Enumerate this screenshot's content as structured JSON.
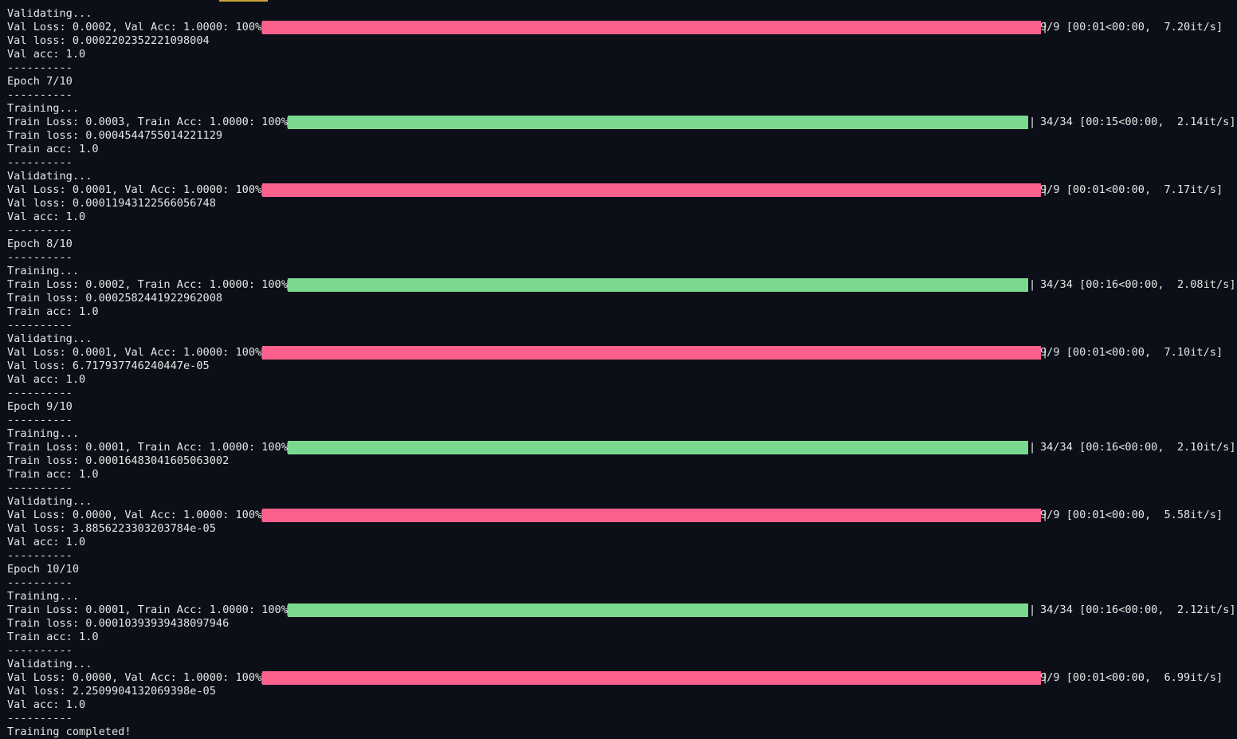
{
  "colors": {
    "background": "#0c0f17",
    "text": "#e6e6e6",
    "train_bar": "#7bd88f",
    "val_bar": "#fc618d"
  },
  "lines": [
    {
      "text": "Validating..."
    },
    {
      "bar": "val",
      "prefix": "Val Loss: 0.0002, Val Acc: 1.0000: 100%",
      "progress": 1.0,
      "suffix": "9/9 [00:01<00:00,  7.20it/s]"
    },
    {
      "text": "Val loss: 0.0002202352221098004"
    },
    {
      "text": "Val acc: 1.0"
    },
    {
      "text": "----------"
    },
    {
      "text": "Epoch 7/10"
    },
    {
      "text": "----------"
    },
    {
      "text": "Training..."
    },
    {
      "bar": "train",
      "prefix": "Train Loss: 0.0003, Train Acc: 1.0000: 100%",
      "progress": 1.0,
      "suffix": "34/34 [00:15<00:00,  2.14it/s]"
    },
    {
      "text": "Train loss: 0.0004544755014221129"
    },
    {
      "text": "Train acc: 1.0"
    },
    {
      "text": "----------"
    },
    {
      "text": "Validating..."
    },
    {
      "bar": "val",
      "prefix": "Val Loss: 0.0001, Val Acc: 1.0000: 100%",
      "progress": 1.0,
      "suffix": "9/9 [00:01<00:00,  7.17it/s]"
    },
    {
      "text": "Val loss: 0.00011943122566056748"
    },
    {
      "text": "Val acc: 1.0"
    },
    {
      "text": "----------"
    },
    {
      "text": "Epoch 8/10"
    },
    {
      "text": "----------"
    },
    {
      "text": "Training..."
    },
    {
      "bar": "train",
      "prefix": "Train Loss: 0.0002, Train Acc: 1.0000: 100%",
      "progress": 1.0,
      "suffix": "34/34 [00:16<00:00,  2.08it/s]"
    },
    {
      "text": "Train loss: 0.0002582441922962008"
    },
    {
      "text": "Train acc: 1.0"
    },
    {
      "text": "----------"
    },
    {
      "text": "Validating..."
    },
    {
      "bar": "val",
      "prefix": "Val Loss: 0.0001, Val Acc: 1.0000: 100%",
      "progress": 1.0,
      "suffix": "9/9 [00:01<00:00,  7.10it/s]"
    },
    {
      "text": "Val loss: 6.717937746240447e-05"
    },
    {
      "text": "Val acc: 1.0"
    },
    {
      "text": "----------"
    },
    {
      "text": "Epoch 9/10"
    },
    {
      "text": "----------"
    },
    {
      "text": "Training..."
    },
    {
      "bar": "train",
      "prefix": "Train Loss: 0.0001, Train Acc: 1.0000: 100%",
      "progress": 1.0,
      "suffix": "34/34 [00:16<00:00,  2.10it/s]"
    },
    {
      "text": "Train loss: 0.00016483041605063002"
    },
    {
      "text": "Train acc: 1.0"
    },
    {
      "text": "----------"
    },
    {
      "text": "Validating..."
    },
    {
      "bar": "val",
      "prefix": "Val Loss: 0.0000, Val Acc: 1.0000: 100%",
      "progress": 1.0,
      "suffix": "9/9 [00:01<00:00,  5.58it/s]"
    },
    {
      "text": "Val loss: 3.8856223303203784e-05"
    },
    {
      "text": "Val acc: 1.0"
    },
    {
      "text": "----------"
    },
    {
      "text": "Epoch 10/10"
    },
    {
      "text": "----------"
    },
    {
      "text": "Training..."
    },
    {
      "bar": "train",
      "prefix": "Train Loss: 0.0001, Train Acc: 1.0000: 100%",
      "progress": 1.0,
      "suffix": "34/34 [00:16<00:00,  2.12it/s]"
    },
    {
      "text": "Train loss: 0.00010393939438097946"
    },
    {
      "text": "Train acc: 1.0"
    },
    {
      "text": "----------"
    },
    {
      "text": "Validating..."
    },
    {
      "bar": "val",
      "prefix": "Val Loss: 0.0000, Val Acc: 1.0000: 100%",
      "progress": 1.0,
      "suffix": "9/9 [00:01<00:00,  6.99it/s]"
    },
    {
      "text": "Val loss: 2.2509904132069398e-05"
    },
    {
      "text": "Val acc: 1.0"
    },
    {
      "text": "----------"
    },
    {
      "text": "Training completed!"
    }
  ]
}
